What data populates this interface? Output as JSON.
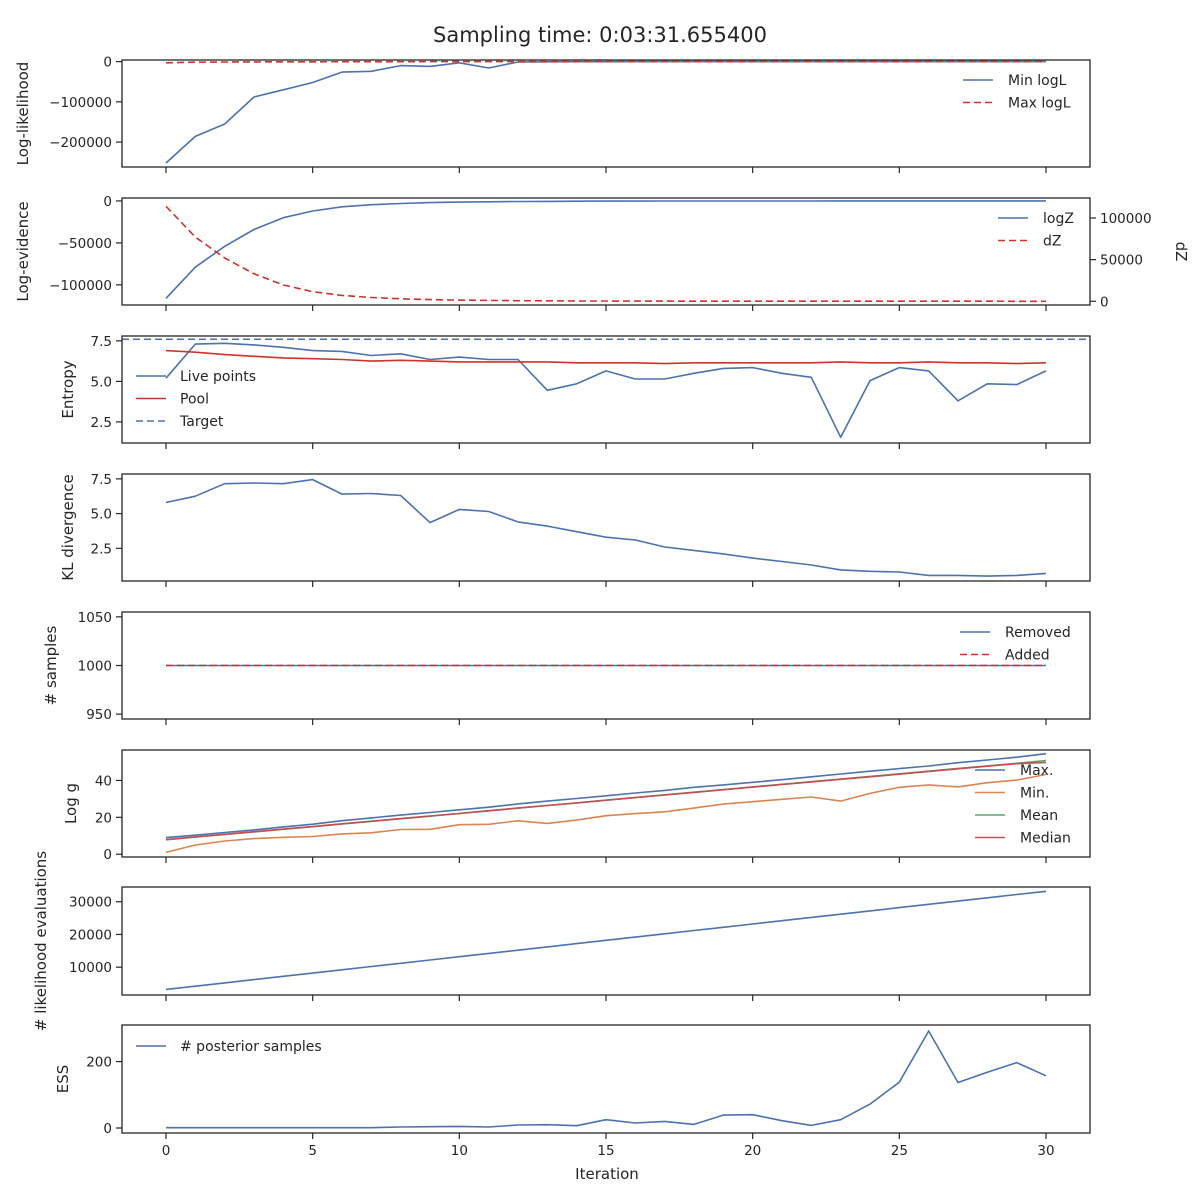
{
  "figure": {
    "title": "Sampling time: 0:03:31.655400",
    "xlabel": "Iteration"
  },
  "colors": {
    "blue": "#4c72b0",
    "red": "#d1332b",
    "orange": "#dd8452",
    "green": "#55a868",
    "brown": "#c44e52",
    "frame": "#262626",
    "background": "#ffffff"
  },
  "chart_data": [
    {
      "type": "line",
      "ylabel": "Log-likelihood",
      "xlim": [
        -1.5,
        31.5
      ],
      "ylim": [
        -262000,
        4000
      ],
      "xticks": [
        0,
        5,
        10,
        15,
        20,
        25,
        30
      ],
      "xtick_labels": [
        "0",
        "5",
        "10",
        "15",
        "20",
        "25",
        "30"
      ],
      "yticks": [
        0,
        -100000,
        -200000
      ],
      "ytick_labels": [
        "0",
        "−100000",
        "−200000"
      ],
      "x": [
        0,
        1,
        2,
        3,
        4,
        5,
        6,
        7,
        8,
        9,
        10,
        11,
        12,
        13,
        14,
        15,
        16,
        17,
        18,
        19,
        20,
        21,
        22,
        23,
        24,
        25,
        26,
        27,
        28,
        29,
        30
      ],
      "series": [
        {
          "name": "Min logL",
          "style": "solid",
          "color": "#4c72b0",
          "values": [
            -252000,
            -186000,
            -155000,
            -88000,
            -70000,
            -52000,
            -26000,
            -24000,
            -10000,
            -12000,
            -3000,
            -16000,
            -1000,
            -500,
            -300,
            -200,
            -100,
            -50,
            -30,
            -20,
            -10,
            -8,
            -6,
            -5,
            -4,
            -3,
            -2,
            -2,
            -1,
            -1,
            0
          ]
        },
        {
          "name": "Max logL",
          "style": "dashed",
          "color": "#d1332b",
          "values": [
            -3000,
            -1500,
            -1000,
            -700,
            -500,
            -400,
            -300,
            -200,
            -150,
            -100,
            -80,
            -60,
            -40,
            -30,
            -20,
            -15,
            -10,
            -8,
            -6,
            -5,
            -4,
            -3,
            -2,
            -2,
            -1,
            -1,
            -1,
            -1,
            0,
            0,
            0
          ]
        }
      ],
      "legend": {
        "placement": "upper right"
      }
    },
    {
      "type": "line",
      "ylabel": "Log-evidence",
      "y2label": "dZ",
      "xlim": [
        -1.5,
        31.5
      ],
      "ylim": [
        -124000,
        3500
      ],
      "y2lim": [
        -4500,
        124000
      ],
      "xticks": [
        0,
        5,
        10,
        15,
        20,
        25,
        30
      ],
      "yticks": [
        0,
        -50000,
        -100000
      ],
      "ytick_labels": [
        "0",
        "−50000",
        "−100000"
      ],
      "y2ticks": [
        100000,
        50000,
        0
      ],
      "y2tick_labels": [
        "100000",
        "50000",
        "0"
      ],
      "x": [
        0,
        1,
        2,
        3,
        4,
        5,
        6,
        7,
        8,
        9,
        10,
        11,
        12,
        13,
        14,
        15,
        16,
        17,
        18,
        19,
        20,
        21,
        22,
        23,
        24,
        25,
        26,
        27,
        28,
        29,
        30
      ],
      "series": [
        {
          "name": "logZ",
          "style": "solid",
          "color": "#4c72b0",
          "axis": "left",
          "values": [
            -116000,
            -79000,
            -54000,
            -34000,
            -20000,
            -12000,
            -7000,
            -4500,
            -3000,
            -2000,
            -1400,
            -1000,
            -700,
            -500,
            -350,
            -250,
            -180,
            -130,
            -90,
            -60,
            -40,
            -30,
            -20,
            -15,
            -10,
            -8,
            -6,
            -5,
            -4,
            -3,
            -2
          ]
        },
        {
          "name": "dZ",
          "style": "dashed",
          "color": "#d1332b",
          "axis": "right",
          "values": [
            114000,
            77000,
            52000,
            33000,
            19500,
            11500,
            7000,
            4500,
            3000,
            2000,
            1400,
            1000,
            700,
            500,
            350,
            250,
            180,
            130,
            90,
            60,
            40,
            30,
            20,
            15,
            10,
            8,
            6,
            5,
            4,
            3,
            2
          ]
        }
      ],
      "legend": {
        "placement": "upper right"
      }
    },
    {
      "type": "line",
      "ylabel": "Entropy",
      "xlim": [
        -1.5,
        31.5
      ],
      "ylim": [
        1.2,
        7.8
      ],
      "xticks": [
        0,
        5,
        10,
        15,
        20,
        25,
        30
      ],
      "yticks": [
        7.5,
        5.0,
        2.5
      ],
      "ytick_labels": [
        "7.5",
        "5.0",
        "2.5"
      ],
      "x": [
        0,
        1,
        2,
        3,
        4,
        5,
        6,
        7,
        8,
        9,
        10,
        11,
        12,
        13,
        14,
        15,
        16,
        17,
        18,
        19,
        20,
        21,
        22,
        23,
        24,
        25,
        26,
        27,
        28,
        29,
        30
      ],
      "series": [
        {
          "name": "Live points",
          "style": "solid",
          "color": "#4c72b0",
          "values": [
            5.2,
            7.3,
            7.35,
            7.25,
            7.1,
            6.9,
            6.85,
            6.6,
            6.7,
            6.35,
            6.5,
            6.35,
            6.35,
            4.45,
            4.85,
            5.65,
            5.15,
            5.15,
            5.5,
            5.8,
            5.85,
            5.5,
            5.25,
            1.55,
            5.05,
            5.85,
            5.65,
            3.8,
            4.85,
            4.8,
            5.65
          ]
        },
        {
          "name": "Pool",
          "style": "solid",
          "color": "#d1332b",
          "values": [
            6.9,
            6.8,
            6.65,
            6.55,
            6.45,
            6.4,
            6.35,
            6.25,
            6.3,
            6.25,
            6.2,
            6.2,
            6.2,
            6.2,
            6.15,
            6.15,
            6.15,
            6.1,
            6.15,
            6.15,
            6.15,
            6.15,
            6.15,
            6.2,
            6.15,
            6.15,
            6.2,
            6.15,
            6.15,
            6.1,
            6.15
          ]
        },
        {
          "name": "Target",
          "style": "dashed",
          "color": "#4c72b0",
          "type": "hline",
          "value": 7.6
        }
      ],
      "legend": {
        "placement": "center left"
      }
    },
    {
      "type": "line",
      "ylabel": "KL divergence",
      "xlim": [
        -1.5,
        31.5
      ],
      "ylim": [
        0.15,
        7.85
      ],
      "xticks": [
        0,
        5,
        10,
        15,
        20,
        25,
        30
      ],
      "yticks": [
        7.5,
        5.0,
        2.5
      ],
      "ytick_labels": [
        "7.5",
        "5.0",
        "2.5"
      ],
      "x": [
        0,
        1,
        2,
        3,
        4,
        5,
        6,
        7,
        8,
        9,
        10,
        11,
        12,
        13,
        14,
        15,
        16,
        17,
        18,
        19,
        20,
        21,
        22,
        23,
        24,
        25,
        26,
        27,
        28,
        29,
        30
      ],
      "series": [
        {
          "name": "",
          "style": "solid",
          "color": "#4c72b0",
          "values": [
            5.8,
            6.25,
            7.15,
            7.2,
            7.15,
            7.45,
            6.4,
            6.45,
            6.3,
            4.35,
            5.3,
            5.15,
            4.4,
            4.1,
            3.7,
            3.3,
            3.1,
            2.6,
            2.35,
            2.1,
            1.8,
            1.55,
            1.3,
            0.95,
            0.85,
            0.8,
            0.55,
            0.55,
            0.5,
            0.55,
            0.7
          ]
        }
      ]
    },
    {
      "type": "line",
      "ylabel": "# samples",
      "xlim": [
        -1.5,
        31.5
      ],
      "ylim": [
        945,
        1055
      ],
      "xticks": [
        0,
        5,
        10,
        15,
        20,
        25,
        30
      ],
      "yticks": [
        1050,
        1000,
        950
      ],
      "ytick_labels": [
        "1050",
        "1000",
        "950"
      ],
      "x": [
        0,
        1,
        2,
        3,
        4,
        5,
        6,
        7,
        8,
        9,
        10,
        11,
        12,
        13,
        14,
        15,
        16,
        17,
        18,
        19,
        20,
        21,
        22,
        23,
        24,
        25,
        26,
        27,
        28,
        29,
        30
      ],
      "series": [
        {
          "name": "Removed",
          "style": "solid",
          "color": "#4c72b0",
          "values": [
            1000,
            1000,
            1000,
            1000,
            1000,
            1000,
            1000,
            1000,
            1000,
            1000,
            1000,
            1000,
            1000,
            1000,
            1000,
            1000,
            1000,
            1000,
            1000,
            1000,
            1000,
            1000,
            1000,
            1000,
            1000,
            1000,
            1000,
            1000,
            1000,
            1000,
            1000
          ]
        },
        {
          "name": "Added",
          "style": "dashed",
          "color": "#d1332b",
          "values": [
            1000,
            1000,
            1000,
            1000,
            1000,
            1000,
            1000,
            1000,
            1000,
            1000,
            1000,
            1000,
            1000,
            1000,
            1000,
            1000,
            1000,
            1000,
            1000,
            1000,
            1000,
            1000,
            1000,
            1000,
            1000,
            1000,
            1000,
            1000,
            1000,
            1000,
            1000
          ]
        }
      ],
      "legend": {
        "placement": "upper right"
      }
    },
    {
      "type": "line",
      "ylabel": "Log g",
      "xlim": [
        -1.5,
        31.5
      ],
      "ylim": [
        -1.5,
        56.5
      ],
      "xticks": [
        0,
        5,
        10,
        15,
        20,
        25,
        30
      ],
      "yticks": [
        40,
        20,
        0
      ],
      "ytick_labels": [
        "40",
        "20",
        "0"
      ],
      "x": [
        0,
        1,
        2,
        3,
        4,
        5,
        6,
        7,
        8,
        9,
        10,
        11,
        12,
        13,
        14,
        15,
        16,
        17,
        18,
        19,
        20,
        21,
        22,
        23,
        24,
        25,
        26,
        27,
        28,
        29,
        30
      ],
      "series": [
        {
          "name": "Max.",
          "style": "solid",
          "color": "#4c72b0",
          "values": [
            9,
            10.3,
            11.8,
            13.2,
            14.8,
            16.3,
            18.2,
            19.7,
            21.2,
            22.6,
            24.1,
            25.5,
            27.3,
            28.8,
            30.2,
            31.7,
            33.2,
            34.6,
            36.3,
            37.6,
            39,
            40.4,
            42,
            43.5,
            45,
            46.4,
            47.8,
            49.6,
            51.1,
            52.6,
            54.5
          ]
        },
        {
          "name": "Min.",
          "style": "solid",
          "color": "#dd8452",
          "values": [
            1,
            5,
            7.2,
            8.5,
            9.2,
            9.6,
            11,
            11.6,
            13.4,
            13.5,
            16,
            16.2,
            18.1,
            16.7,
            18.5,
            20.9,
            22,
            23,
            25,
            27.2,
            28.5,
            29.8,
            31,
            28.8,
            33,
            36.3,
            37.6,
            36.5,
            38.8,
            40.2,
            43.2
          ]
        },
        {
          "name": "Mean",
          "style": "solid",
          "color": "#55a868",
          "values": [
            7.8,
            9.3,
            10.7,
            12.1,
            13.5,
            14.9,
            16.4,
            17.8,
            19.2,
            20.6,
            22.1,
            23.5,
            25,
            26.4,
            27.8,
            29.3,
            30.7,
            32.2,
            33.6,
            35,
            36.5,
            37.9,
            39.3,
            40.8,
            42.2,
            43.6,
            45,
            46.5,
            47.9,
            49.3,
            50.8
          ]
        },
        {
          "name": "Median",
          "style": "solid",
          "color": "#c44e52",
          "values": [
            8,
            9.4,
            10.8,
            12.2,
            13.6,
            15,
            16.5,
            17.9,
            19.3,
            20.7,
            22.1,
            23.6,
            25,
            26.4,
            27.8,
            29.3,
            30.7,
            32.1,
            33.5,
            35,
            36.4,
            37.8,
            39.2,
            40.6,
            42,
            43.4,
            44.9,
            46.3,
            47.7,
            49.1,
            49.8
          ]
        }
      ],
      "legend": {
        "placement": "lower right"
      }
    },
    {
      "type": "line",
      "ylabel": "# likelihood evaluations",
      "xlim": [
        -1.5,
        31.5
      ],
      "ylim": [
        1500,
        34500
      ],
      "xticks": [
        0,
        5,
        10,
        15,
        20,
        25,
        30
      ],
      "yticks": [
        30000,
        20000,
        10000
      ],
      "ytick_labels": [
        "30000",
        "20000",
        "10000"
      ],
      "x": [
        0,
        1,
        2,
        3,
        4,
        5,
        6,
        7,
        8,
        9,
        10,
        11,
        12,
        13,
        14,
        15,
        16,
        17,
        18,
        19,
        20,
        21,
        22,
        23,
        24,
        25,
        26,
        27,
        28,
        29,
        30
      ],
      "series": [
        {
          "name": "",
          "style": "solid",
          "color": "#4c72b0",
          "values": [
            3200,
            4200,
            5200,
            6200,
            7200,
            8200,
            9200,
            10200,
            11200,
            12200,
            13200,
            14200,
            15200,
            16200,
            17200,
            18200,
            19200,
            20200,
            21200,
            22200,
            23200,
            24200,
            25200,
            26200,
            27200,
            28200,
            29200,
            30200,
            31200,
            32200,
            33200
          ]
        }
      ]
    },
    {
      "type": "line",
      "ylabel": "ESS",
      "xlim": [
        -1.5,
        31.5
      ],
      "ylim": [
        -15,
        310
      ],
      "xticks": [
        0,
        5,
        10,
        15,
        20,
        25,
        30
      ],
      "xtick_labels": [
        "0",
        "5",
        "10",
        "15",
        "20",
        "25",
        "30"
      ],
      "yticks": [
        200,
        0
      ],
      "ytick_labels": [
        "200",
        "0"
      ],
      "x": [
        0,
        1,
        2,
        3,
        4,
        5,
        6,
        7,
        8,
        9,
        10,
        11,
        12,
        13,
        14,
        15,
        16,
        17,
        18,
        19,
        20,
        21,
        22,
        23,
        24,
        25,
        26,
        27,
        28,
        29,
        30
      ],
      "series": [
        {
          "name": "# posterior samples",
          "style": "solid",
          "color": "#4c72b0",
          "values": [
            1,
            1,
            1,
            1,
            1,
            1,
            1,
            1,
            3,
            4,
            5,
            3,
            9,
            10,
            7,
            25,
            15,
            20,
            11,
            39,
            40,
            22,
            8,
            25,
            72,
            138,
            292,
            137,
            168,
            197,
            157
          ]
        }
      ],
      "legend": {
        "placement": "upper left"
      }
    }
  ]
}
